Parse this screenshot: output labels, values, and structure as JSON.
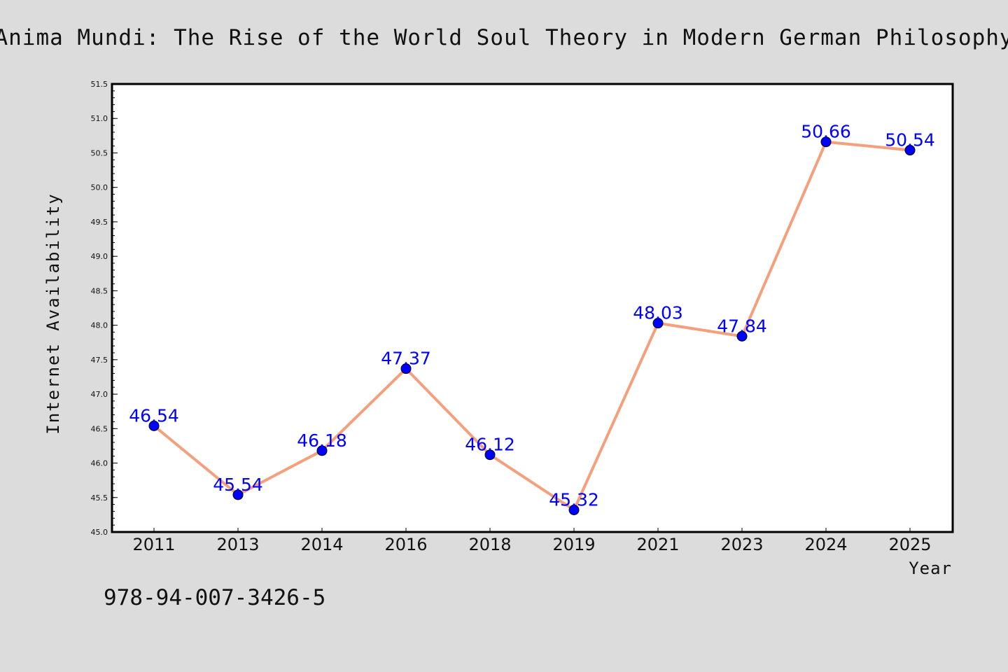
{
  "colors": {
    "background": "#dcdcdc",
    "plot_background": "#ffffff",
    "line": "#f4a07c",
    "marker": "#0000ff",
    "data_label": "#0000ff",
    "axis": "#000000"
  },
  "footer": {
    "isbn": "978-94-007-3426-5"
  },
  "chart_data": {
    "type": "line",
    "title": "Anima Mundi: The Rise of the World Soul Theory in Modern German Philosophy",
    "xlabel": "Year",
    "ylabel": "Internet Availability",
    "categories": [
      "2011",
      "2013",
      "2014",
      "2016",
      "2018",
      "2019",
      "2021",
      "2023",
      "2024",
      "2025"
    ],
    "series": [
      {
        "values": [
          46.54,
          45.54,
          46.18,
          47.37,
          46.12,
          45.32,
          48.03,
          47.84,
          50.66,
          50.54
        ]
      }
    ],
    "data_labels": [
      "46.54",
      "45.54",
      "46.18",
      "47.37",
      "46.12",
      "45.32",
      "48.03",
      "47.84",
      "50.66",
      "50.54"
    ],
    "ylim": [
      45.0,
      51.5
    ],
    "yticks": [
      "45.0",
      "45.5",
      "46.0",
      "46.5",
      "47.0",
      "47.5",
      "48.0",
      "48.5",
      "49.0",
      "49.5",
      "50.0",
      "50.5",
      "51.0",
      "51.5"
    ],
    "grid": false,
    "legend": "none"
  }
}
